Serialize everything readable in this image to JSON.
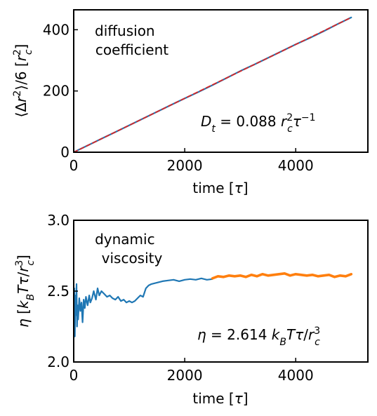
{
  "chart_data": [
    {
      "type": "line",
      "xlabel": "time [τ]",
      "ylabel": "⟨Δr²⟩/6 [r_c²]",
      "xlim": [
        0,
        5300
      ],
      "ylim": [
        0,
        465
      ],
      "xticks": [
        0,
        2000,
        4000
      ],
      "yticks": [
        0,
        200,
        400
      ],
      "annotation": "diffusion coefficient",
      "result_label": "D_t = 0.088 r_c² τ⁻¹",
      "result_value": 0.088,
      "series": [
        {
          "color": "#1f77b4",
          "style": "solid",
          "x": [
            0,
            250,
            500,
            750,
            1000,
            1250,
            1500,
            1750,
            2000,
            2250,
            2500,
            2750,
            3000,
            3250,
            3500,
            3750,
            4000,
            4250,
            4500,
            4750,
            5000
          ],
          "y": [
            0,
            22,
            44,
            66,
            88,
            110,
            132,
            154,
            176,
            197,
            219,
            242,
            265,
            286,
            308,
            330,
            352,
            373,
            395,
            418,
            440
          ]
        },
        {
          "color": "#d62728",
          "style": "dashed",
          "x": [
            0,
            5000
          ],
          "y": [
            0,
            440
          ]
        }
      ]
    },
    {
      "type": "line",
      "xlabel": "time [τ]",
      "ylabel": "η [k_B T τ/r_c³]",
      "xlim": [
        0,
        5300
      ],
      "ylim": [
        2.0,
        3.0
      ],
      "xticks": [
        0,
        2000,
        4000
      ],
      "yticks": [
        2.0,
        2.5,
        3.0
      ],
      "annotation": "dynamic viscosity",
      "result_label": "η = 2.614 k_B T τ/r_c³",
      "result_value": 2.614,
      "series": [
        {
          "color": "#1f77b4",
          "x": [
            0,
            10,
            20,
            30,
            40,
            50,
            60,
            70,
            80,
            100,
            120,
            140,
            160,
            180,
            200,
            220,
            250,
            280,
            300,
            330,
            360,
            400,
            430,
            460,
            500,
            550,
            600,
            650,
            700,
            750,
            800,
            850,
            900,
            950,
            1000,
            1050,
            1100,
            1150,
            1200,
            1250,
            1300,
            1350,
            1400,
            1500,
            1600,
            1700,
            1800,
            1900,
            2000,
            2100,
            2200,
            2300,
            2400,
            2500
          ],
          "y": [
            2.2,
            2.52,
            2.18,
            2.47,
            2.33,
            2.55,
            2.25,
            2.4,
            2.3,
            2.45,
            2.36,
            2.42,
            2.28,
            2.44,
            2.38,
            2.46,
            2.4,
            2.47,
            2.42,
            2.45,
            2.5,
            2.44,
            2.52,
            2.47,
            2.5,
            2.48,
            2.46,
            2.47,
            2.45,
            2.44,
            2.46,
            2.43,
            2.44,
            2.42,
            2.43,
            2.42,
            2.43,
            2.45,
            2.47,
            2.46,
            2.52,
            2.54,
            2.55,
            2.56,
            2.57,
            2.575,
            2.58,
            2.57,
            2.58,
            2.585,
            2.58,
            2.59,
            2.58,
            2.585
          ]
        },
        {
          "color": "#ff7f0e",
          "x": [
            2500,
            2600,
            2700,
            2800,
            2900,
            3000,
            3100,
            3200,
            3300,
            3400,
            3500,
            3600,
            3700,
            3800,
            3900,
            4000,
            4100,
            4200,
            4300,
            4400,
            4500,
            4600,
            4700,
            4800,
            4900,
            5000
          ],
          "y": [
            2.59,
            2.605,
            2.6,
            2.61,
            2.605,
            2.61,
            2.6,
            2.615,
            2.605,
            2.62,
            2.61,
            2.615,
            2.62,
            2.625,
            2.61,
            2.62,
            2.615,
            2.61,
            2.615,
            2.605,
            2.61,
            2.615,
            2.6,
            2.61,
            2.605,
            2.62
          ]
        }
      ]
    }
  ]
}
